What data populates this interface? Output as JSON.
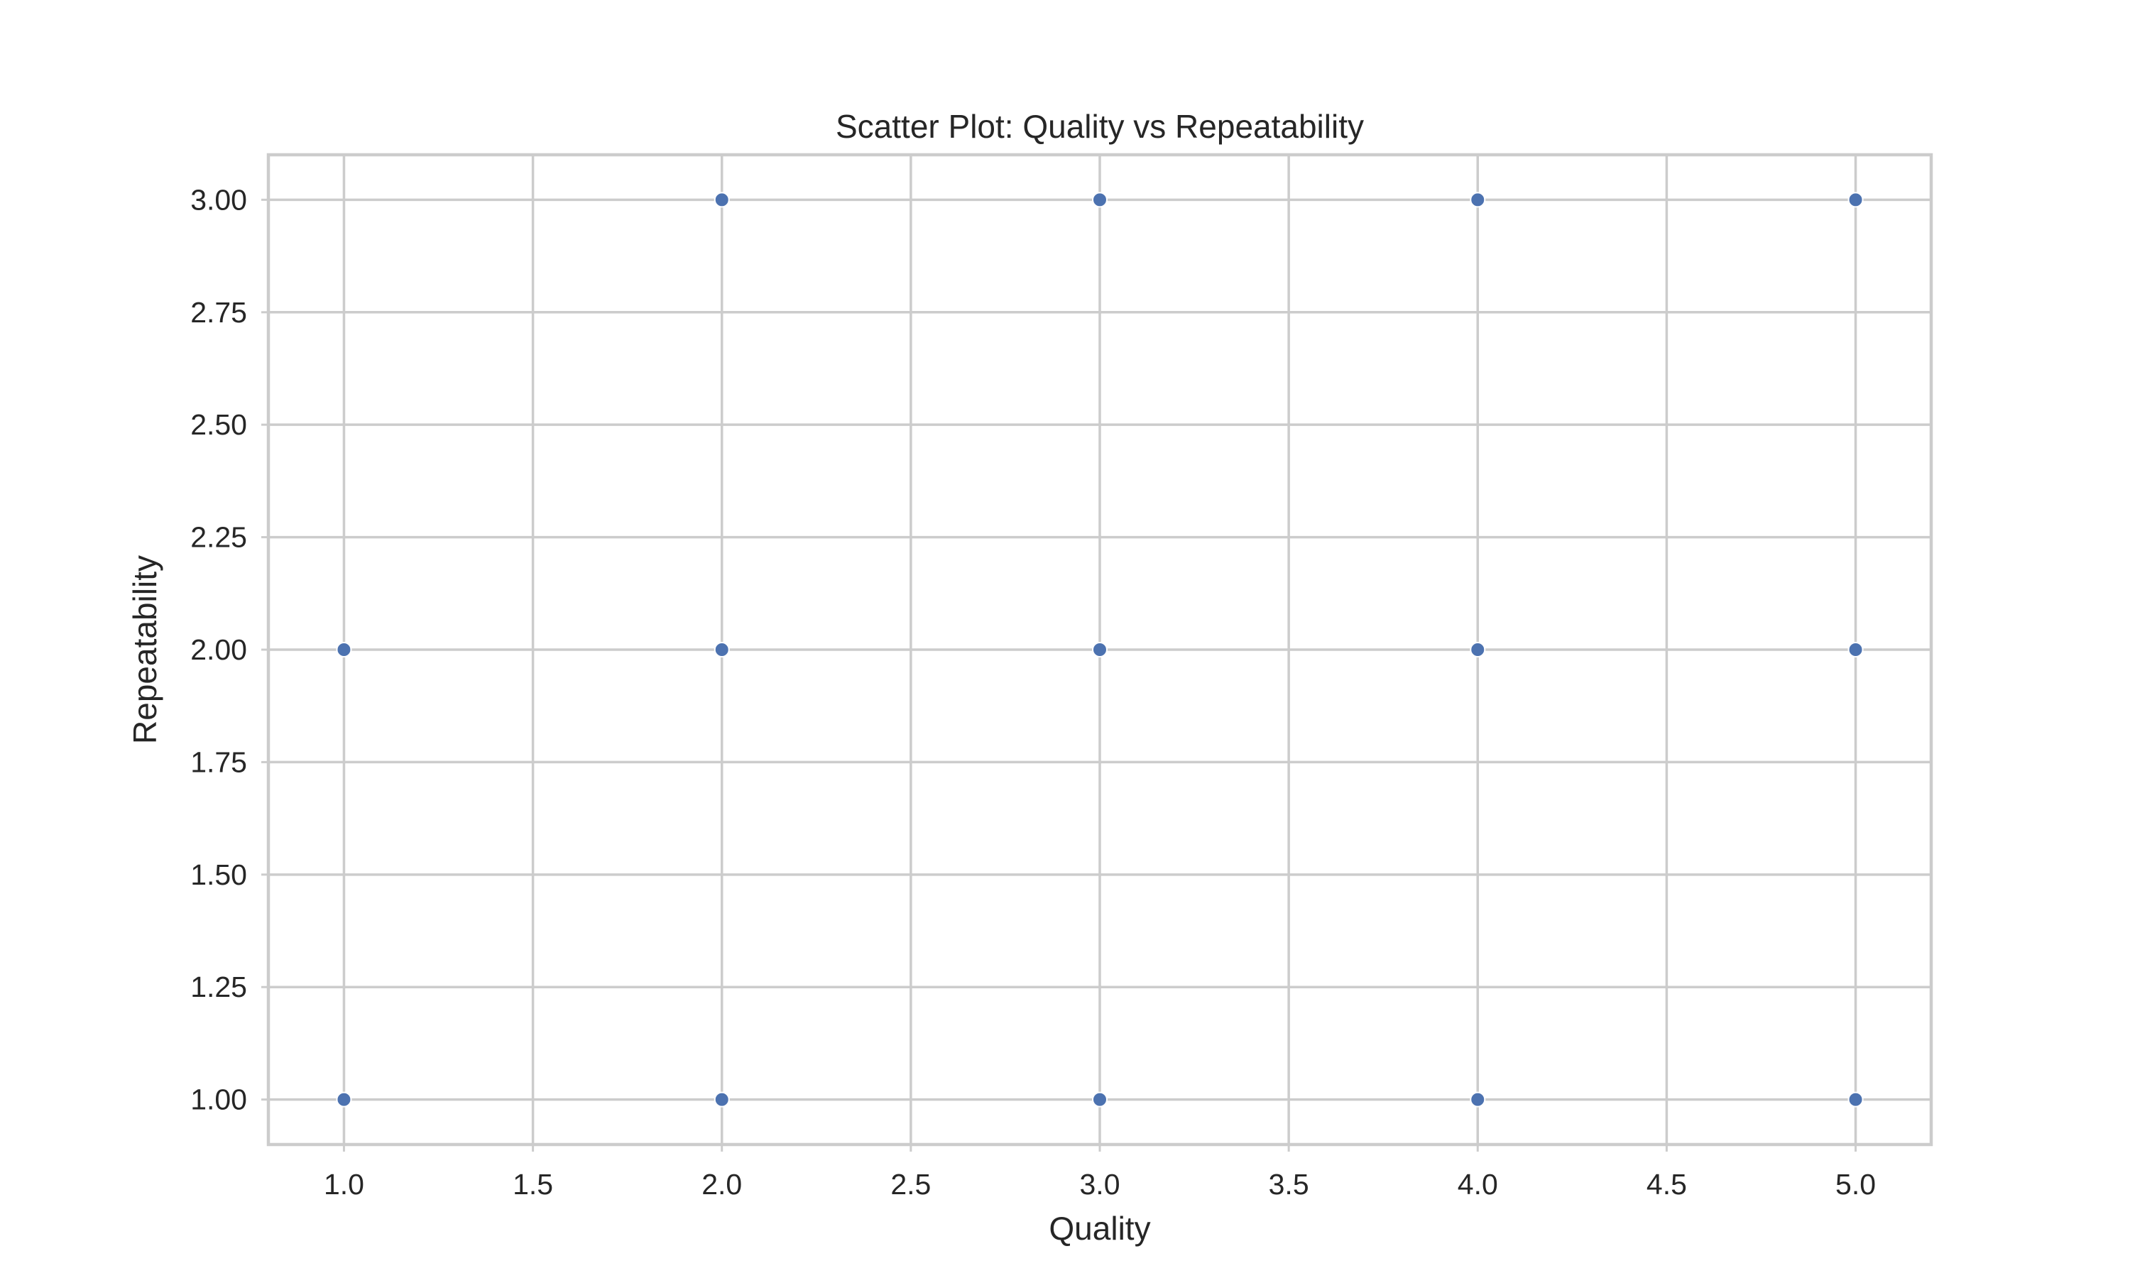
{
  "chart_data": {
    "type": "scatter",
    "title": "Scatter Plot: Quality vs Repeatability",
    "xlabel": "Quality",
    "ylabel": "Repeatability",
    "xlim": [
      0.8,
      5.2
    ],
    "ylim": [
      0.9,
      3.1
    ],
    "xticks": [
      1.0,
      1.5,
      2.0,
      2.5,
      3.0,
      3.5,
      4.0,
      4.5,
      5.0
    ],
    "xtick_labels": [
      "1.0",
      "1.5",
      "2.0",
      "2.5",
      "3.0",
      "3.5",
      "4.0",
      "4.5",
      "5.0"
    ],
    "yticks": [
      1.0,
      1.25,
      1.5,
      1.75,
      2.0,
      2.25,
      2.5,
      2.75,
      3.0
    ],
    "ytick_labels": [
      "1.00",
      "1.25",
      "1.50",
      "1.75",
      "2.00",
      "2.25",
      "2.50",
      "2.75",
      "3.00"
    ],
    "grid": true,
    "series": [
      {
        "name": "Quality vs Repeatability",
        "color": "#4c72b0",
        "edge_color": "#ffffff",
        "points": [
          {
            "x": 1,
            "y": 1
          },
          {
            "x": 1,
            "y": 2
          },
          {
            "x": 2,
            "y": 1
          },
          {
            "x": 2,
            "y": 2
          },
          {
            "x": 2,
            "y": 3
          },
          {
            "x": 3,
            "y": 1
          },
          {
            "x": 3,
            "y": 2
          },
          {
            "x": 3,
            "y": 3
          },
          {
            "x": 4,
            "y": 1
          },
          {
            "x": 4,
            "y": 2
          },
          {
            "x": 4,
            "y": 3
          },
          {
            "x": 5,
            "y": 1
          },
          {
            "x": 5,
            "y": 2
          },
          {
            "x": 5,
            "y": 3
          }
        ]
      }
    ]
  }
}
